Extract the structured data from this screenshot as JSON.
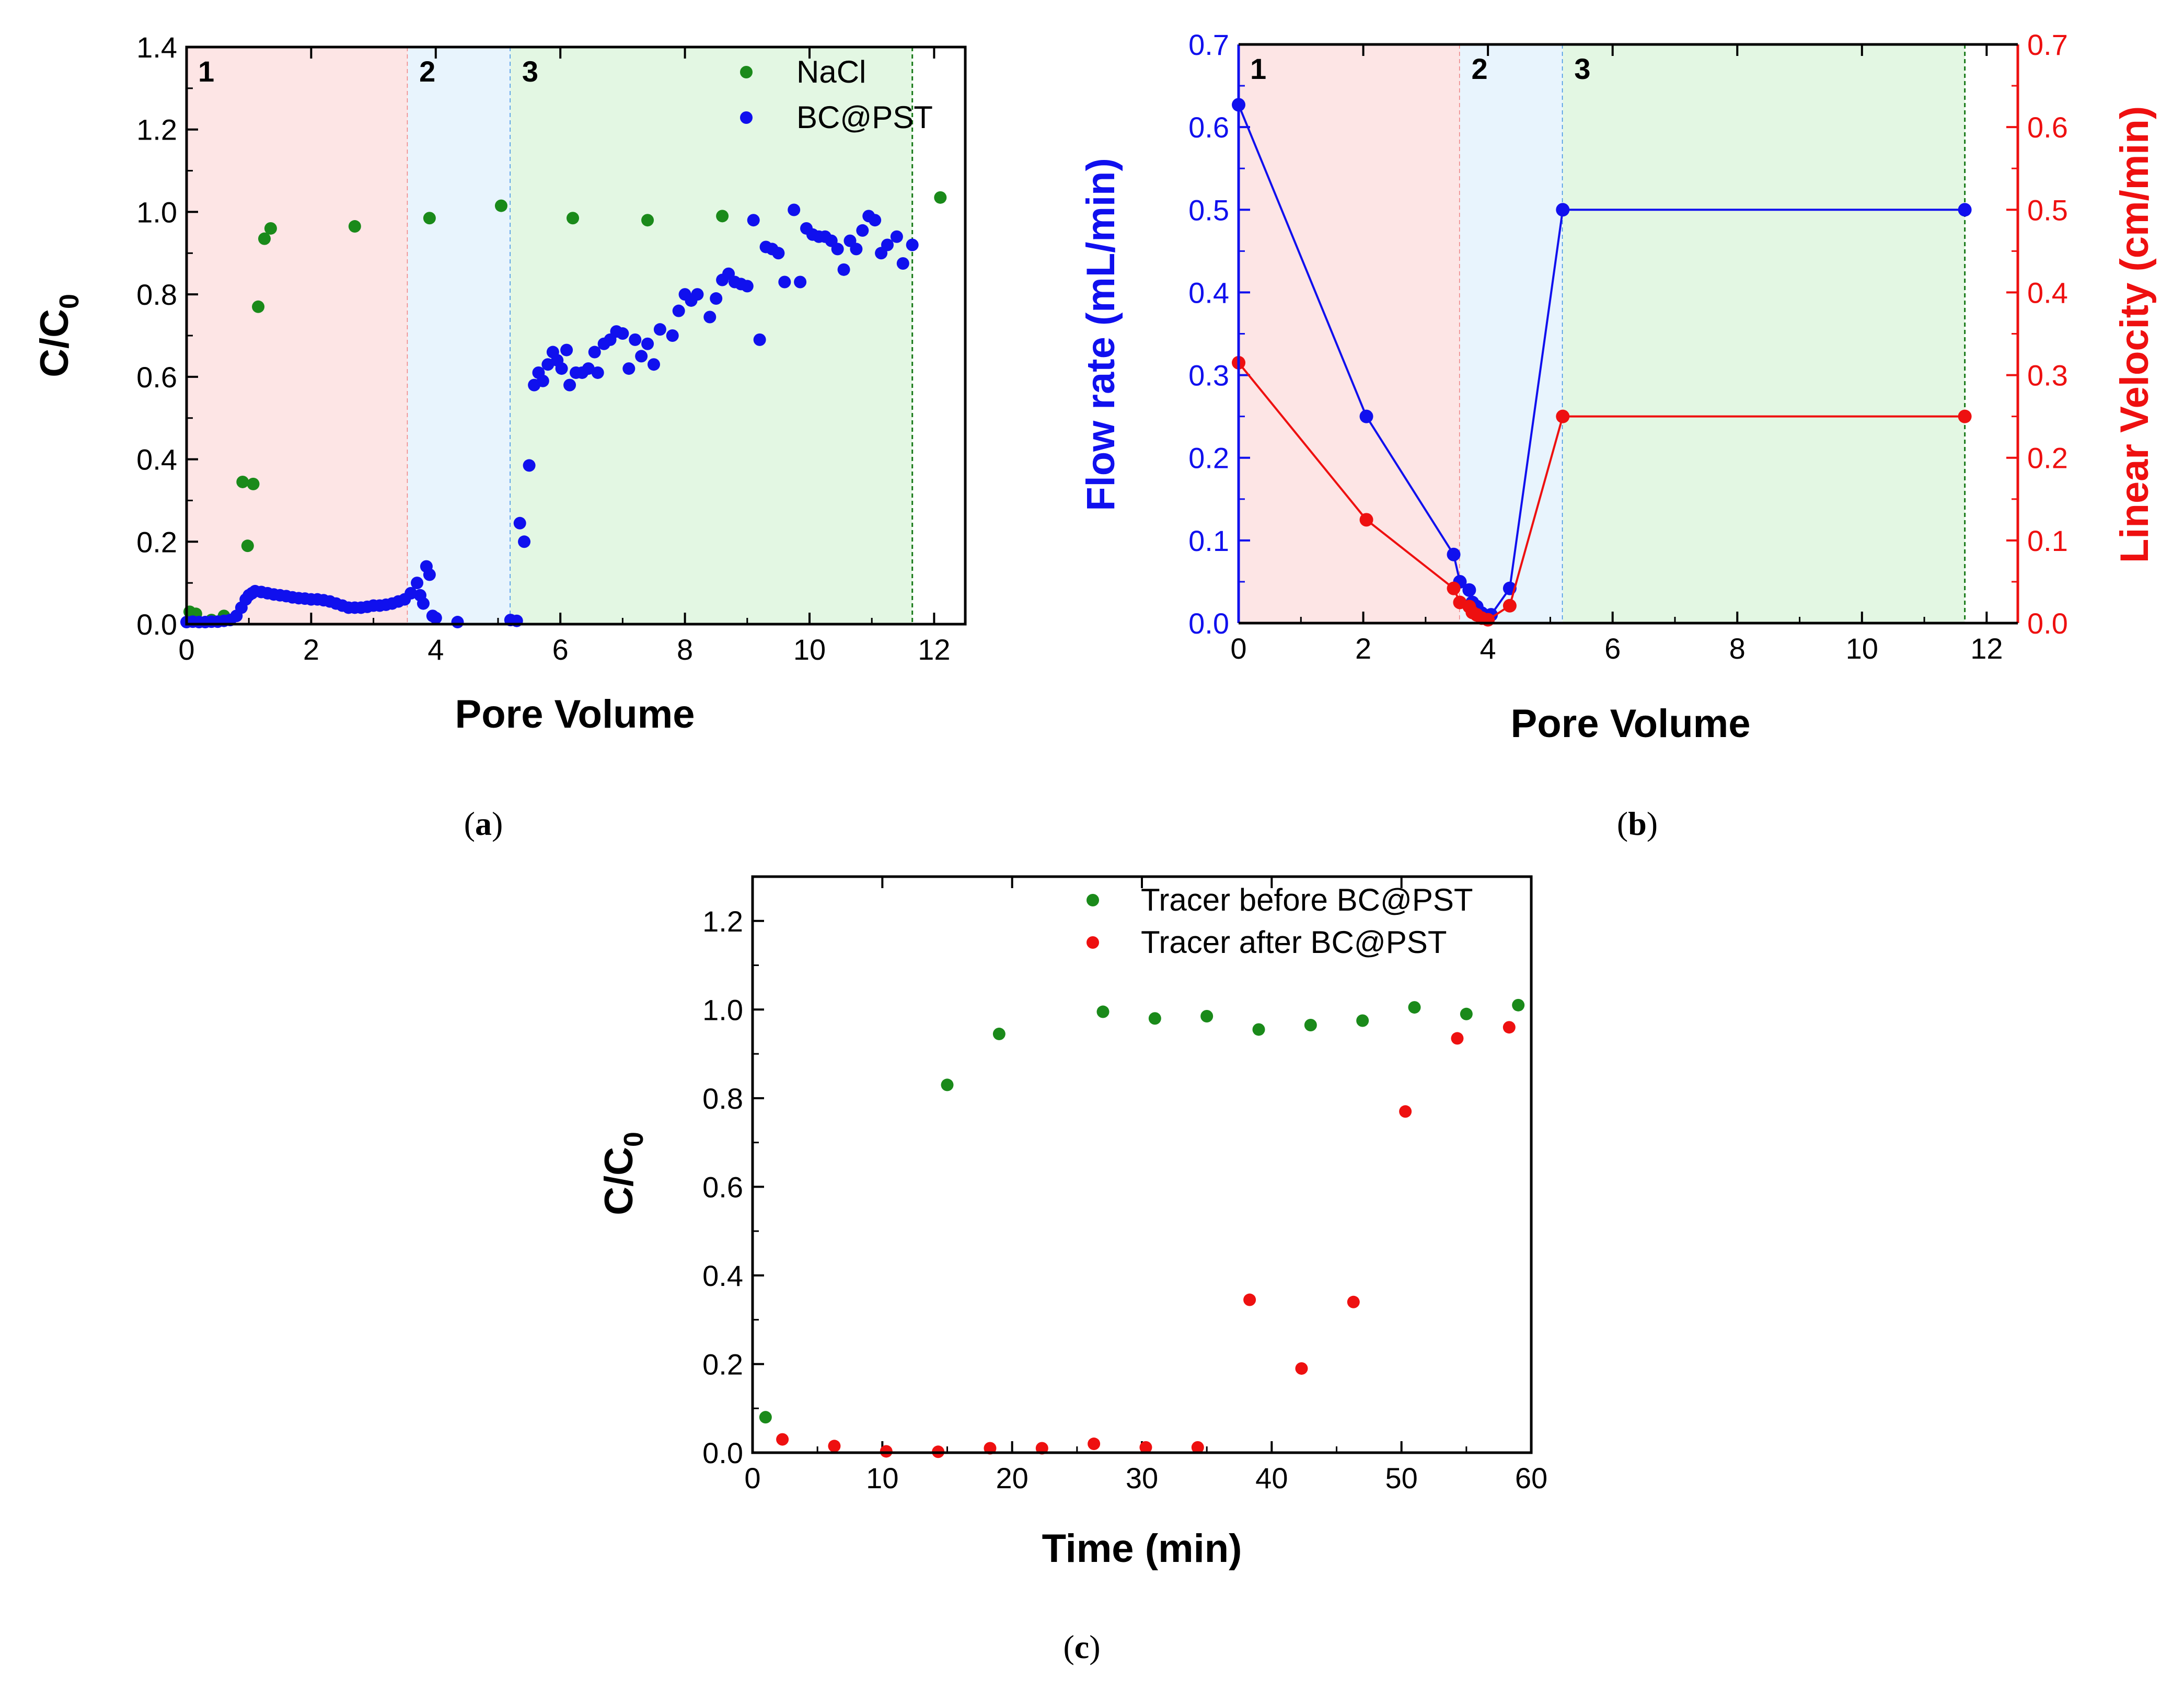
{
  "chart_data": [
    {
      "id": "a",
      "type": "scatter",
      "caption": "a",
      "xlabel": "Pore Volume",
      "ylabel": "C/C",
      "ylabel_sub": "0",
      "xlim": [
        0,
        12.5
      ],
      "ylim": [
        0,
        1.4
      ],
      "xticks": [
        "0",
        "2",
        "4",
        "6",
        "8",
        "10",
        "12"
      ],
      "yticks": [
        "0.0",
        "0.2",
        "0.4",
        "0.6",
        "0.8",
        "1.0",
        "1.2",
        "1.4"
      ],
      "legend_position": "top-right",
      "regions": [
        {
          "label": "1",
          "x0": 0,
          "x1": 3.55,
          "color": "#fde5e5",
          "line": "#f08080"
        },
        {
          "label": "2",
          "x0": 3.55,
          "x1": 5.2,
          "color": "#e8f4fd",
          "line": "#3a8ee6"
        },
        {
          "label": "3",
          "x0": 5.2,
          "x1": 11.65,
          "color": "#e3f7e3",
          "line": "#1a7a1a"
        }
      ],
      "series": [
        {
          "name": "NaCl",
          "color": "#1a8a1a",
          "points": [
            [
              0.05,
              0.03
            ],
            [
              0.15,
              0.025
            ],
            [
              0.4,
              0.01
            ],
            [
              0.6,
              0.02
            ],
            [
              0.9,
              0.345
            ],
            [
              0.98,
              0.19
            ],
            [
              1.07,
              0.34
            ],
            [
              1.15,
              0.77
            ],
            [
              1.25,
              0.935
            ],
            [
              1.35,
              0.96
            ],
            [
              2.7,
              0.965
            ],
            [
              3.9,
              0.985
            ],
            [
              5.05,
              1.015
            ],
            [
              6.2,
              0.985
            ],
            [
              7.4,
              0.98
            ],
            [
              8.6,
              0.99
            ],
            [
              12.1,
              1.035
            ]
          ]
        },
        {
          "name": "BC@PST",
          "color": "#1010ee",
          "points": [
            [
              0.0,
              0.005
            ],
            [
              0.1,
              0.006
            ],
            [
              0.2,
              0.005
            ],
            [
              0.3,
              0.005
            ],
            [
              0.4,
              0.006
            ],
            [
              0.5,
              0.006
            ],
            [
              0.6,
              0.008
            ],
            [
              0.7,
              0.01
            ],
            [
              0.8,
              0.02
            ],
            [
              0.88,
              0.04
            ],
            [
              0.95,
              0.06
            ],
            [
              1.0,
              0.07
            ],
            [
              1.05,
              0.075
            ],
            [
              1.1,
              0.08
            ],
            [
              1.2,
              0.078
            ],
            [
              1.3,
              0.075
            ],
            [
              1.4,
              0.072
            ],
            [
              1.5,
              0.07
            ],
            [
              1.6,
              0.068
            ],
            [
              1.7,
              0.065
            ],
            [
              1.8,
              0.063
            ],
            [
              1.9,
              0.062
            ],
            [
              2.0,
              0.06
            ],
            [
              2.1,
              0.06
            ],
            [
              2.2,
              0.058
            ],
            [
              2.3,
              0.055
            ],
            [
              2.4,
              0.05
            ],
            [
              2.5,
              0.045
            ],
            [
              2.6,
              0.04
            ],
            [
              2.7,
              0.04
            ],
            [
              2.8,
              0.04
            ],
            [
              2.9,
              0.042
            ],
            [
              3.0,
              0.045
            ],
            [
              3.1,
              0.045
            ],
            [
              3.2,
              0.047
            ],
            [
              3.3,
              0.05
            ],
            [
              3.4,
              0.055
            ],
            [
              3.5,
              0.06
            ],
            [
              3.6,
              0.075
            ],
            [
              3.7,
              0.1
            ],
            [
              3.75,
              0.07
            ],
            [
              3.8,
              0.05
            ],
            [
              3.85,
              0.14
            ],
            [
              3.9,
              0.12
            ],
            [
              3.95,
              0.02
            ],
            [
              4.0,
              0.015
            ],
            [
              4.35,
              0.005
            ],
            [
              5.2,
              0.01
            ],
            [
              5.3,
              0.008
            ],
            [
              5.35,
              0.245
            ],
            [
              5.42,
              0.2
            ],
            [
              5.5,
              0.385
            ],
            [
              5.58,
              0.58
            ],
            [
              5.65,
              0.61
            ],
            [
              5.72,
              0.59
            ],
            [
              5.8,
              0.63
            ],
            [
              5.88,
              0.66
            ],
            [
              5.95,
              0.64
            ],
            [
              6.02,
              0.62
            ],
            [
              6.1,
              0.665
            ],
            [
              6.15,
              0.58
            ],
            [
              6.25,
              0.61
            ],
            [
              6.35,
              0.61
            ],
            [
              6.45,
              0.62
            ],
            [
              6.55,
              0.66
            ],
            [
              6.6,
              0.61
            ],
            [
              6.7,
              0.68
            ],
            [
              6.8,
              0.69
            ],
            [
              6.9,
              0.71
            ],
            [
              7.0,
              0.705
            ],
            [
              7.1,
              0.62
            ],
            [
              7.2,
              0.69
            ],
            [
              7.3,
              0.65
            ],
            [
              7.4,
              0.68
            ],
            [
              7.5,
              0.63
            ],
            [
              7.6,
              0.715
            ],
            [
              7.8,
              0.7
            ],
            [
              7.9,
              0.76
            ],
            [
              8.0,
              0.8
            ],
            [
              8.1,
              0.785
            ],
            [
              8.2,
              0.8
            ],
            [
              8.4,
              0.745
            ],
            [
              8.5,
              0.79
            ],
            [
              8.6,
              0.835
            ],
            [
              8.7,
              0.85
            ],
            [
              8.8,
              0.83
            ],
            [
              8.9,
              0.825
            ],
            [
              9.0,
              0.82
            ],
            [
              9.1,
              0.98
            ],
            [
              9.2,
              0.69
            ],
            [
              9.3,
              0.915
            ],
            [
              9.4,
              0.91
            ],
            [
              9.5,
              0.9
            ],
            [
              9.6,
              0.83
            ],
            [
              9.75,
              1.005
            ],
            [
              9.85,
              0.83
            ],
            [
              9.95,
              0.96
            ],
            [
              10.05,
              0.945
            ],
            [
              10.15,
              0.94
            ],
            [
              10.25,
              0.94
            ],
            [
              10.35,
              0.93
            ],
            [
              10.45,
              0.91
            ],
            [
              10.55,
              0.86
            ],
            [
              10.65,
              0.93
            ],
            [
              10.75,
              0.91
            ],
            [
              10.85,
              0.955
            ],
            [
              10.95,
              0.99
            ],
            [
              11.05,
              0.98
            ],
            [
              11.15,
              0.9
            ],
            [
              11.25,
              0.92
            ],
            [
              11.4,
              0.94
            ],
            [
              11.5,
              0.875
            ],
            [
              11.65,
              0.92
            ]
          ]
        }
      ]
    },
    {
      "id": "b",
      "type": "line",
      "caption": "b",
      "xlabel": "Pore Volume",
      "ylabel": "Flow rate (mL/min)",
      "y2label": "Linear Velocity (cm/min)",
      "xlim": [
        0,
        12.5
      ],
      "ylim": [
        0,
        0.7
      ],
      "y2lim": [
        0,
        0.7
      ],
      "xticks": [
        "0",
        "2",
        "4",
        "6",
        "8",
        "10",
        "12"
      ],
      "yticks": [
        "0.0",
        "0.1",
        "0.2",
        "0.3",
        "0.4",
        "0.5",
        "0.6",
        "0.7"
      ],
      "y2ticks": [
        "0.0",
        "0.1",
        "0.2",
        "0.3",
        "0.4",
        "0.5",
        "0.6",
        "0.7"
      ],
      "regions": [
        {
          "label": "1",
          "x0": 0,
          "x1": 3.55,
          "color": "#fde5e5",
          "line": "#f08080"
        },
        {
          "label": "2",
          "x0": 3.55,
          "x1": 5.2,
          "color": "#e8f4fd",
          "line": "#3a8ee6"
        },
        {
          "label": "3",
          "x0": 5.2,
          "x1": 11.65,
          "color": "#e3f7e3",
          "line": "#1a7a1a"
        }
      ],
      "series": [
        {
          "name": "Flow rate",
          "axis": "left",
          "color": "#1010ee",
          "points": [
            [
              0,
              0.627
            ],
            [
              2.05,
              0.25
            ],
            [
              3.45,
              0.083
            ],
            [
              3.55,
              0.05
            ],
            [
              3.7,
              0.04
            ],
            [
              3.75,
              0.025
            ],
            [
              3.82,
              0.02
            ],
            [
              3.9,
              0.012
            ],
            [
              4.0,
              0.008
            ],
            [
              4.05,
              0.01
            ],
            [
              4.35,
              0.042
            ],
            [
              5.2,
              0.5
            ],
            [
              11.65,
              0.5
            ]
          ]
        },
        {
          "name": "Linear Velocity",
          "axis": "right",
          "color": "#ee1010",
          "points": [
            [
              0,
              0.315
            ],
            [
              2.05,
              0.125
            ],
            [
              3.45,
              0.042
            ],
            [
              3.55,
              0.025
            ],
            [
              3.7,
              0.02
            ],
            [
              3.75,
              0.013
            ],
            [
              3.82,
              0.01
            ],
            [
              3.9,
              0.006
            ],
            [
              4.0,
              0.004
            ],
            [
              4.35,
              0.021
            ],
            [
              5.2,
              0.25
            ],
            [
              11.65,
              0.25
            ]
          ]
        }
      ]
    },
    {
      "id": "c",
      "type": "scatter",
      "caption": "c",
      "xlabel": "Time (min)",
      "ylabel": "C/C",
      "ylabel_sub": "0",
      "xlim": [
        0,
        60
      ],
      "ylim": [
        0,
        1.3
      ],
      "xticks": [
        "0",
        "10",
        "20",
        "30",
        "40",
        "50",
        "60"
      ],
      "yticks": [
        "0.0",
        "0.2",
        "0.4",
        "0.6",
        "0.8",
        "1.0",
        "1.2"
      ],
      "legend_position": "top-right",
      "series": [
        {
          "name": "Tracer before BC@PST",
          "color": "#1a8a1a",
          "points": [
            [
              1,
              0.08
            ],
            [
              15,
              0.83
            ],
            [
              19,
              0.945
            ],
            [
              27,
              0.995
            ],
            [
              31,
              0.98
            ],
            [
              35,
              0.985
            ],
            [
              39,
              0.955
            ],
            [
              43,
              0.965
            ],
            [
              47,
              0.975
            ],
            [
              51,
              1.005
            ],
            [
              55,
              0.99
            ],
            [
              59,
              1.01
            ]
          ]
        },
        {
          "name": "Tracer after BC@PST",
          "color": "#ee1010",
          "points": [
            [
              2.3,
              0.03
            ],
            [
              6.3,
              0.015
            ],
            [
              10.3,
              0.003
            ],
            [
              14.3,
              0.002
            ],
            [
              18.3,
              0.01
            ],
            [
              22.3,
              0.01
            ],
            [
              26.3,
              0.02
            ],
            [
              30.3,
              0.012
            ],
            [
              34.3,
              0.012
            ],
            [
              38.3,
              0.345
            ],
            [
              42.3,
              0.19
            ],
            [
              46.3,
              0.34
            ],
            [
              50.3,
              0.77
            ],
            [
              54.3,
              0.935
            ],
            [
              58.3,
              0.96
            ]
          ]
        }
      ]
    }
  ]
}
